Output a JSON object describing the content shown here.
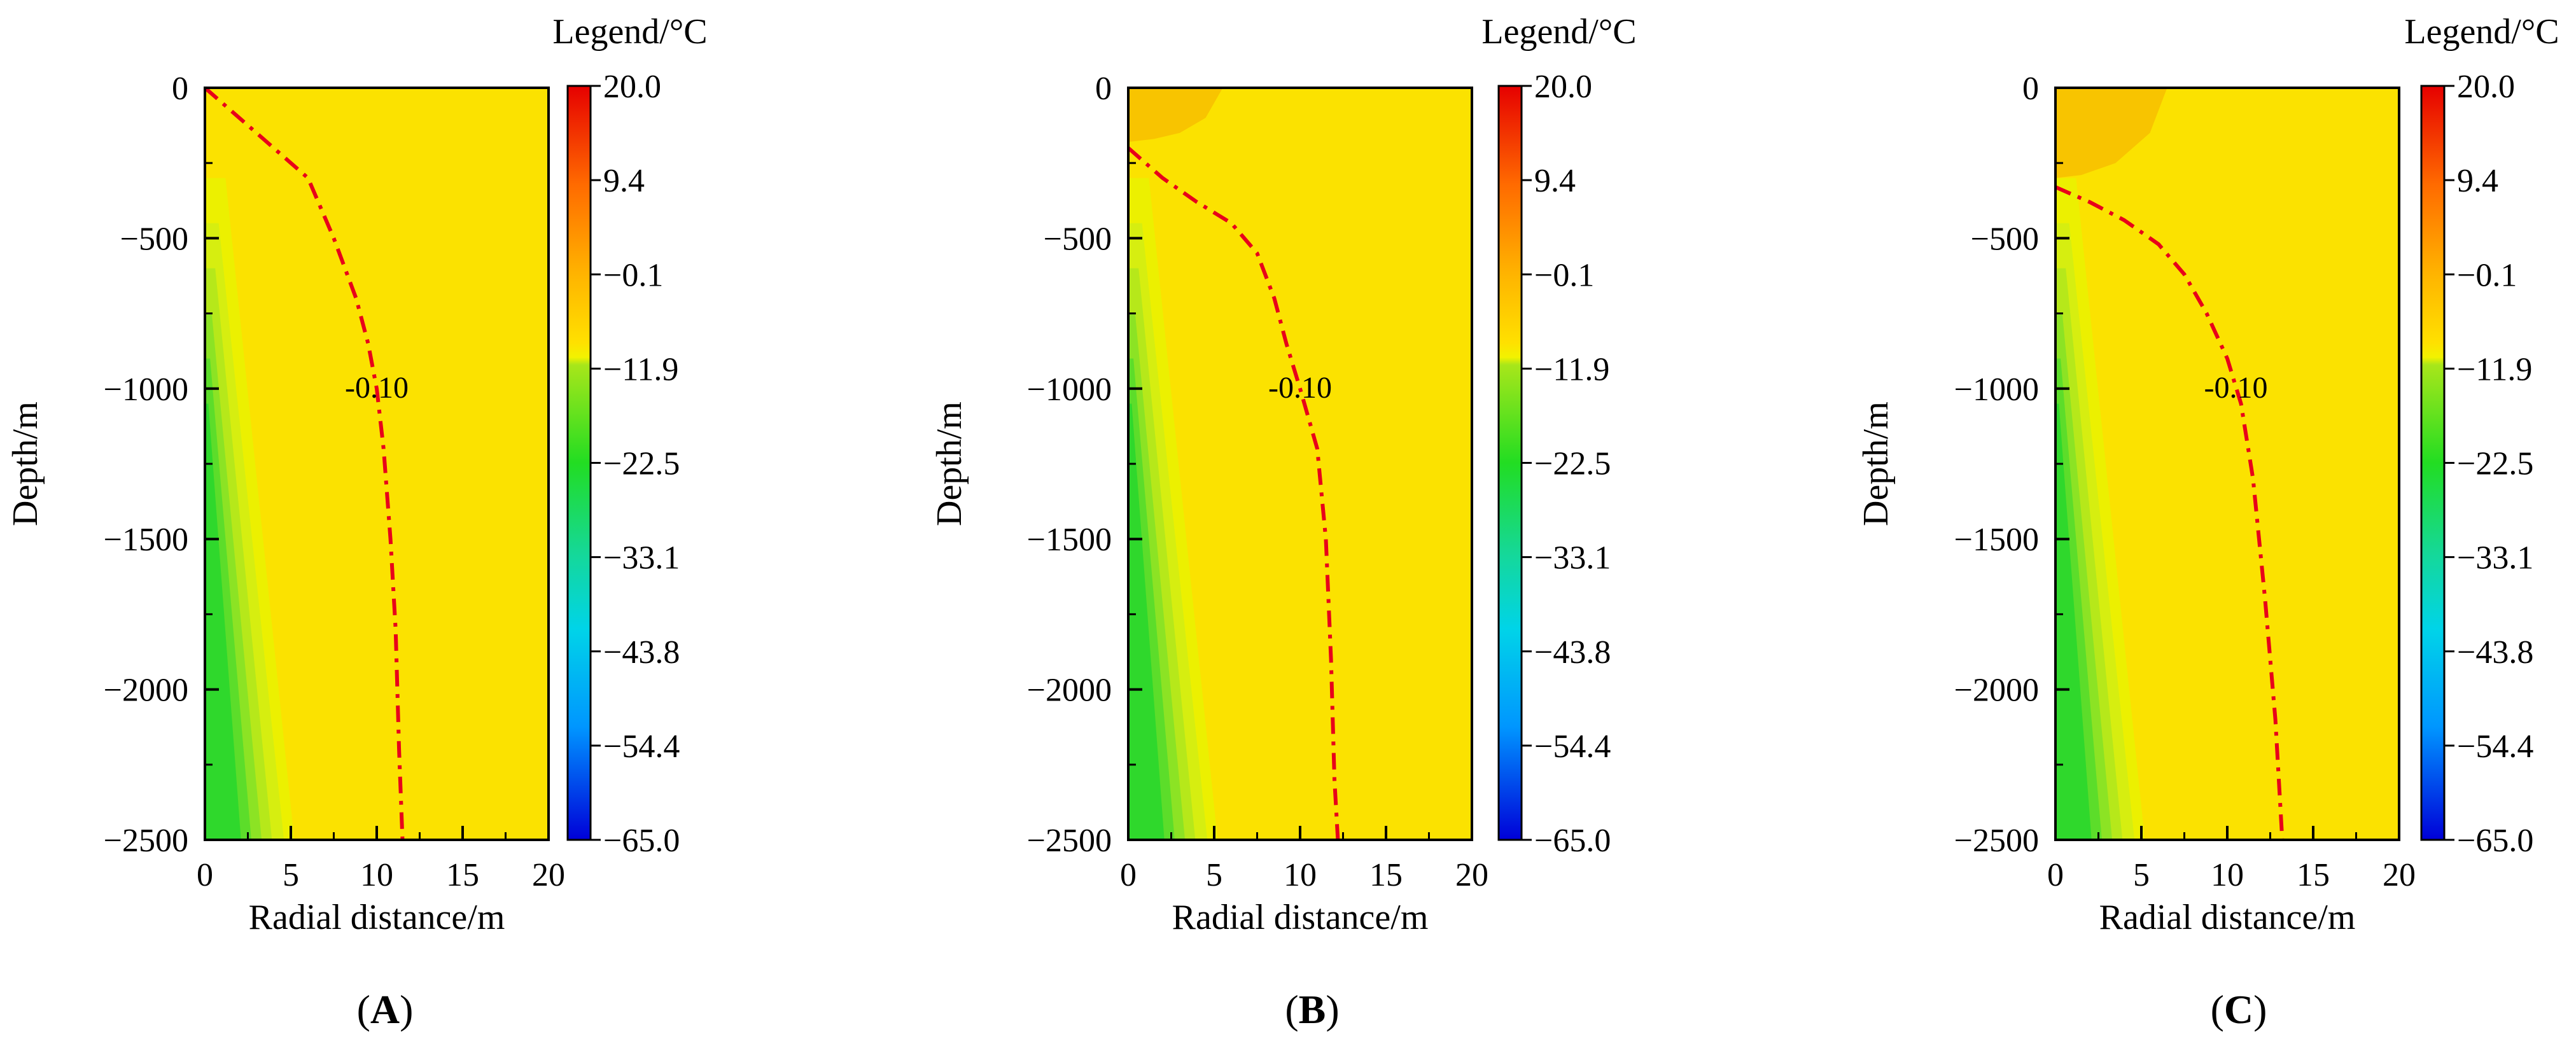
{
  "figure": {
    "panels": [
      {
        "id": "A",
        "label": "A"
      },
      {
        "id": "B",
        "label": "B"
      },
      {
        "id": "C",
        "label": "C"
      }
    ]
  },
  "chart_data": [
    {
      "type": "heatmap",
      "panel": "A",
      "xlabel": "Radial distance/m",
      "ylabel": "Depth/m",
      "xlim": [
        0,
        20
      ],
      "ylim": [
        -2500,
        0
      ],
      "xticks": [
        0,
        5,
        10,
        15,
        20
      ],
      "yticks": [
        0,
        -500,
        -1000,
        -1500,
        -2000,
        -2500
      ],
      "xtick_labels": [
        "0",
        "5",
        "10",
        "15",
        "20"
      ],
      "ytick_labels": [
        "0",
        "−500",
        "−1000",
        "−1500",
        "−2000",
        "−2500"
      ],
      "legend_title": "Legend/°C",
      "legend_values": [
        20.0,
        9.4,
        -0.1,
        -11.9,
        -22.5,
        -33.1,
        -43.8,
        -54.4,
        -65.0
      ],
      "legend_labels": [
        "20.0",
        "9.4",
        "−0.1",
        "−11.9",
        "−22.5",
        "−33.1",
        "−43.8",
        "−54.4",
        "−65.0"
      ],
      "contour": {
        "level_label": "-0.10",
        "label_position": [
          10,
          -1000
        ],
        "points": [
          [
            0,
            0
          ],
          [
            3,
            -150
          ],
          [
            6,
            -300
          ],
          [
            7.5,
            -500
          ],
          [
            8.8,
            -700
          ],
          [
            9.5,
            -850
          ],
          [
            10,
            -1000
          ],
          [
            10.4,
            -1200
          ],
          [
            10.8,
            -1500
          ],
          [
            11.1,
            -1800
          ],
          [
            11.3,
            -2200
          ],
          [
            11.5,
            -2500
          ]
        ]
      },
      "warm_zone": []
    },
    {
      "type": "heatmap",
      "panel": "B",
      "xlabel": "Radial distance/m",
      "ylabel": "Depth/m",
      "xlim": [
        0,
        20
      ],
      "ylim": [
        -2500,
        0
      ],
      "xticks": [
        0,
        5,
        10,
        15,
        20
      ],
      "yticks": [
        0,
        -500,
        -1000,
        -1500,
        -2000,
        -2500
      ],
      "xtick_labels": [
        "0",
        "5",
        "10",
        "15",
        "20"
      ],
      "ytick_labels": [
        "0",
        "−500",
        "−1000",
        "−1500",
        "−2000",
        "−2500"
      ],
      "legend_title": "Legend/°C",
      "legend_values": [
        20.0,
        9.4,
        -0.1,
        -11.9,
        -22.5,
        -33.1,
        -43.8,
        -54.4,
        -65.0
      ],
      "legend_labels": [
        "20.0",
        "9.4",
        "−0.1",
        "−11.9",
        "−22.5",
        "−33.1",
        "−43.8",
        "−54.4",
        "−65.0"
      ],
      "contour": {
        "level_label": "-0.10",
        "label_position": [
          10,
          -1000
        ],
        "points": [
          [
            0,
            -200
          ],
          [
            2,
            -300
          ],
          [
            4,
            -380
          ],
          [
            6,
            -450
          ],
          [
            7.5,
            -550
          ],
          [
            8.5,
            -700
          ],
          [
            9.2,
            -850
          ],
          [
            10,
            -1000
          ],
          [
            11,
            -1200
          ],
          [
            11.5,
            -1500
          ],
          [
            11.8,
            -1900
          ],
          [
            12,
            -2300
          ],
          [
            12.2,
            -2500
          ]
        ]
      },
      "warm_zone": [
        [
          0,
          0
        ],
        [
          4,
          0
        ],
        [
          5.5,
          0
        ],
        [
          4.5,
          -100
        ],
        [
          3,
          -150
        ],
        [
          1.5,
          -170
        ],
        [
          0,
          -180
        ]
      ]
    },
    {
      "type": "heatmap",
      "panel": "C",
      "xlabel": "Radial distance/m",
      "ylabel": "Depth/m",
      "xlim": [
        0,
        20
      ],
      "ylim": [
        -2500,
        0
      ],
      "xticks": [
        0,
        5,
        10,
        15,
        20
      ],
      "yticks": [
        0,
        -500,
        -1000,
        -1500,
        -2000,
        -2500
      ],
      "xtick_labels": [
        "0",
        "5",
        "10",
        "15",
        "20"
      ],
      "ytick_labels": [
        "0",
        "−500",
        "−1000",
        "−1500",
        "−2000",
        "−2500"
      ],
      "legend_title": "Legend/°C",
      "legend_values": [
        20.0,
        9.4,
        -0.1,
        -11.9,
        -22.5,
        -33.1,
        -43.8,
        -54.4,
        -65.0
      ],
      "legend_labels": [
        "20.0",
        "9.4",
        "−0.1",
        "−11.9",
        "−22.5",
        "−33.1",
        "−43.8",
        "−54.4",
        "−65.0"
      ],
      "contour": {
        "level_label": "-0.10",
        "label_position": [
          10.5,
          -1000
        ],
        "points": [
          [
            0,
            -330
          ],
          [
            2,
            -380
          ],
          [
            4,
            -440
          ],
          [
            6,
            -520
          ],
          [
            7.5,
            -620
          ],
          [
            8.8,
            -750
          ],
          [
            10,
            -900
          ],
          [
            10.8,
            -1050
          ],
          [
            11.5,
            -1300
          ],
          [
            12.2,
            -1700
          ],
          [
            12.8,
            -2100
          ],
          [
            13.2,
            -2500
          ]
        ]
      },
      "warm_zone": [
        [
          0,
          0
        ],
        [
          5,
          0
        ],
        [
          6.5,
          0
        ],
        [
          5.5,
          -150
        ],
        [
          3.5,
          -250
        ],
        [
          1.5,
          -290
        ],
        [
          0,
          -300
        ]
      ]
    }
  ]
}
